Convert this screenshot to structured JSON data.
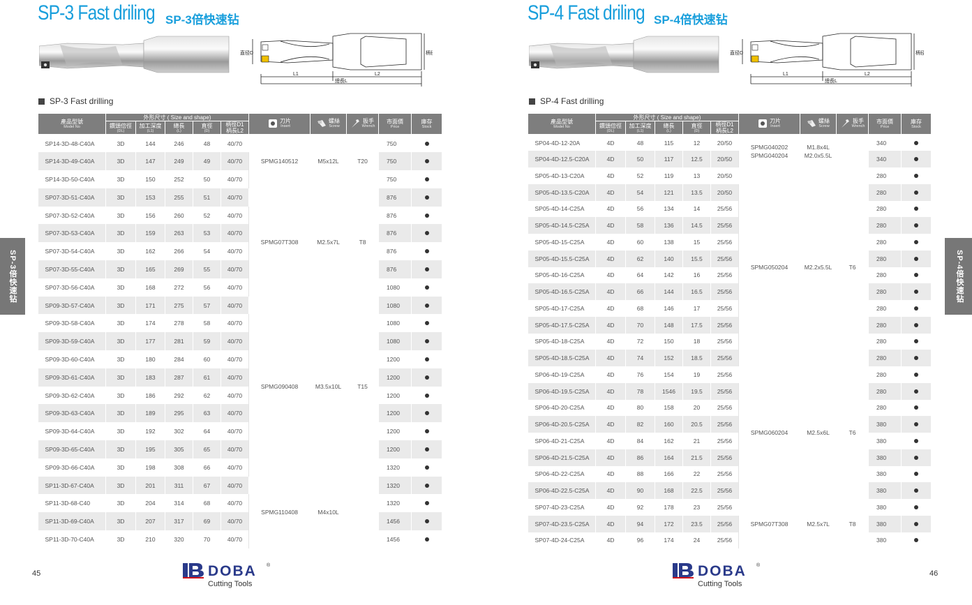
{
  "left": {
    "title": "SP-3 Fast driling",
    "subtitle": "SP-3倍快速钻",
    "section_label": "SP-3 Fast drilling",
    "page_number": "45",
    "side_tab": "SP-3倍快速钻",
    "drawing": {
      "diameter": "直径D",
      "shank": "柄径D1",
      "l1": "L1",
      "l2": "L2",
      "total": "總長L"
    },
    "rows": [
      [
        "SP14-3D-48-C40A",
        "3D",
        "144",
        "246",
        "48",
        "40/70",
        "750"
      ],
      [
        "SP14-3D-49-C40A",
        "3D",
        "147",
        "249",
        "49",
        "40/70",
        "750"
      ],
      [
        "SP14-3D-50-C40A",
        "3D",
        "150",
        "252",
        "50",
        "40/70",
        "750"
      ],
      [
        "SP07-3D-51-C40A",
        "3D",
        "153",
        "255",
        "51",
        "40/70",
        "876"
      ],
      [
        "SP07-3D-52-C40A",
        "3D",
        "156",
        "260",
        "52",
        "40/70",
        "876"
      ],
      [
        "SP07-3D-53-C40A",
        "3D",
        "159",
        "263",
        "53",
        "40/70",
        "876"
      ],
      [
        "SP07-3D-54-C40A",
        "3D",
        "162",
        "266",
        "54",
        "40/70",
        "876"
      ],
      [
        "SP07-3D-55-C40A",
        "3D",
        "165",
        "269",
        "55",
        "40/70",
        "876"
      ],
      [
        "SP07-3D-56-C40A",
        "3D",
        "168",
        "272",
        "56",
        "40/70",
        "1080"
      ],
      [
        "SP09-3D-57-C40A",
        "3D",
        "171",
        "275",
        "57",
        "40/70",
        "1080"
      ],
      [
        "SP09-3D-58-C40A",
        "3D",
        "174",
        "278",
        "58",
        "40/70",
        "1080"
      ],
      [
        "SP09-3D-59-C40A",
        "3D",
        "177",
        "281",
        "59",
        "40/70",
        "1080"
      ],
      [
        "SP09-3D-60-C40A",
        "3D",
        "180",
        "284",
        "60",
        "40/70",
        "1200"
      ],
      [
        "SP09-3D-61-C40A",
        "3D",
        "183",
        "287",
        "61",
        "40/70",
        "1200"
      ],
      [
        "SP09-3D-62-C40A",
        "3D",
        "186",
        "292",
        "62",
        "40/70",
        "1200"
      ],
      [
        "SP09-3D-63-C40A",
        "3D",
        "189",
        "295",
        "63",
        "40/70",
        "1200"
      ],
      [
        "SP09-3D-64-C40A",
        "3D",
        "192",
        "302",
        "64",
        "40/70",
        "1200"
      ],
      [
        "SP09-3D-65-C40A",
        "3D",
        "195",
        "305",
        "65",
        "40/70",
        "1200"
      ],
      [
        "SP09-3D-66-C40A",
        "3D",
        "198",
        "308",
        "66",
        "40/70",
        "1320"
      ],
      [
        "SP11-3D-67-C40A",
        "3D",
        "201",
        "311",
        "67",
        "40/70",
        "1320"
      ],
      [
        "SP11-3D-68-C40",
        "3D",
        "204",
        "314",
        "68",
        "40/70",
        "1320"
      ],
      [
        "SP11-3D-69-C40A",
        "3D",
        "207",
        "317",
        "69",
        "40/70",
        "1456"
      ],
      [
        "SP11-3D-70-C40A",
        "3D",
        "210",
        "320",
        "70",
        "40/70",
        "1456"
      ]
    ],
    "groups": [
      {
        "span": 3,
        "insert": "SPMG140512",
        "screw": "M5x12L",
        "wrench": "T20"
      },
      {
        "span": 6,
        "insert": "SPMG07T308",
        "screw": "M2.5x7L",
        "wrench": "T8"
      },
      {
        "span": 10,
        "insert": "SPMG090408",
        "screw": "M3.5x10L",
        "wrench": "T15"
      },
      {
        "span": 4,
        "insert": "SPMG110408",
        "screw": "M4x10L",
        "wrench": ""
      }
    ]
  },
  "right": {
    "title": "SP-4 Fast driling",
    "subtitle": "SP-4倍快速钻",
    "section_label": "SP-4 Fast drilling",
    "page_number": "46",
    "side_tab": "SP-4倍快速钻",
    "drawing": {
      "diameter": "直径D",
      "shank": "柄径D1",
      "l1": "L1",
      "l2": "L2",
      "total": "總長L"
    },
    "rows": [
      [
        "SP04-4D-12-20A",
        "4D",
        "48",
        "115",
        "12",
        "20/50",
        "340"
      ],
      [
        "SP04-4D-12.5-C20A",
        "4D",
        "50",
        "117",
        "12.5",
        "20/50",
        "340"
      ],
      [
        "SP05-4D-13-C20A",
        "4D",
        "52",
        "119",
        "13",
        "20/50",
        "280"
      ],
      [
        "SP05-4D-13.5-C20A",
        "4D",
        "54",
        "121",
        "13.5",
        "20/50",
        "280"
      ],
      [
        "SP05-4D-14-C25A",
        "4D",
        "56",
        "134",
        "14",
        "25/56",
        "280"
      ],
      [
        "SP05-4D-14.5-C25A",
        "4D",
        "58",
        "136",
        "14.5",
        "25/56",
        "280"
      ],
      [
        "SP05-4D-15-C25A",
        "4D",
        "60",
        "138",
        "15",
        "25/56",
        "280"
      ],
      [
        "SP05-4D-15.5-C25A",
        "4D",
        "62",
        "140",
        "15.5",
        "25/56",
        "280"
      ],
      [
        "SP05-4D-16-C25A",
        "4D",
        "64",
        "142",
        "16",
        "25/56",
        "280"
      ],
      [
        "SP05-4D-16.5-C25A",
        "4D",
        "66",
        "144",
        "16.5",
        "25/56",
        "280"
      ],
      [
        "SP05-4D-17-C25A",
        "4D",
        "68",
        "146",
        "17",
        "25/56",
        "280"
      ],
      [
        "SP05-4D-17.5-C25A",
        "4D",
        "70",
        "148",
        "17.5",
        "25/56",
        "280"
      ],
      [
        "SP05-4D-18-C25A",
        "4D",
        "72",
        "150",
        "18",
        "25/56",
        "280"
      ],
      [
        "SP05-4D-18.5-C25A",
        "4D",
        "74",
        "152",
        "18.5",
        "25/56",
        "280"
      ],
      [
        "SP06-4D-19-C25A",
        "4D",
        "76",
        "154",
        "19",
        "25/56",
        "280"
      ],
      [
        "SP06-4D-19.5-C25A",
        "4D",
        "78",
        "1546",
        "19.5",
        "25/56",
        "280"
      ],
      [
        "SP06-4D-20-C25A",
        "4D",
        "80",
        "158",
        "20",
        "25/56",
        "280"
      ],
      [
        "SP06-4D-20.5-C25A",
        "4D",
        "82",
        "160",
        "20.5",
        "25/56",
        "380"
      ],
      [
        "SP06-4D-21-C25A",
        "4D",
        "84",
        "162",
        "21",
        "25/56",
        "380"
      ],
      [
        "SP06-4D-21.5-C25A",
        "4D",
        "86",
        "164",
        "21.5",
        "25/56",
        "380"
      ],
      [
        "SP06-4D-22-C25A",
        "4D",
        "88",
        "166",
        "22",
        "25/56",
        "380"
      ],
      [
        "SP06-4D-22.5-C25A",
        "4D",
        "90",
        "168",
        "22.5",
        "25/56",
        "380"
      ],
      [
        "SP07-4D-23-C25A",
        "4D",
        "92",
        "178",
        "23",
        "25/56",
        "380"
      ],
      [
        "SP07-4D-23.5-C25A",
        "4D",
        "94",
        "172",
        "23.5",
        "25/56",
        "380"
      ],
      [
        "SP07-4D-24-C25A",
        "4D",
        "96",
        "174",
        "24",
        "25/56",
        "380"
      ]
    ],
    "groups": [
      {
        "span": 2,
        "insert": "SPMG040202\nSPMG040204",
        "screw": "M1.8x4L\nM2.0x5.5L",
        "wrench": ""
      },
      {
        "span": 12,
        "insert": "SPMG050204",
        "screw": "M2.2x5.5L",
        "wrench": "T6"
      },
      {
        "span": 8,
        "insert": "SPMG060204",
        "screw": "M2.5x6L",
        "wrench": "T6"
      },
      {
        "span": 3,
        "insert": "SPMG07T308",
        "screw": "M2.5x7L",
        "wrench": "T8"
      }
    ]
  },
  "headers": {
    "model": "產品型號",
    "model_en": "Model No",
    "size_group": "外形尺寸 ( Size and shape)",
    "dc": "鑽頭倍徑",
    "dc_en": "(DL)",
    "depth": "加工深度",
    "depth_en": "(L1)",
    "length": "總長",
    "length_en": "(L)",
    "dia": "直徑",
    "dia_en": "(D)",
    "shank": "柄徑D1\n柄長L2",
    "insert": "刀片",
    "insert_en": "Insert",
    "screw": "螺絲",
    "screw_en": "Screw",
    "wrench": "扳手",
    "wrench_en": "Wrench",
    "price": "市面價",
    "price_en": "Price",
    "stock": "庫存",
    "stock_en": "Stock"
  },
  "brand": {
    "name": "DOBA",
    "registered": "®",
    "tagline": "Cutting Tools"
  },
  "colors": {
    "title": "#1a9fdc",
    "header": "#7e7e7e",
    "row_alt": "#eaeaea",
    "side_tab": "#777777"
  }
}
